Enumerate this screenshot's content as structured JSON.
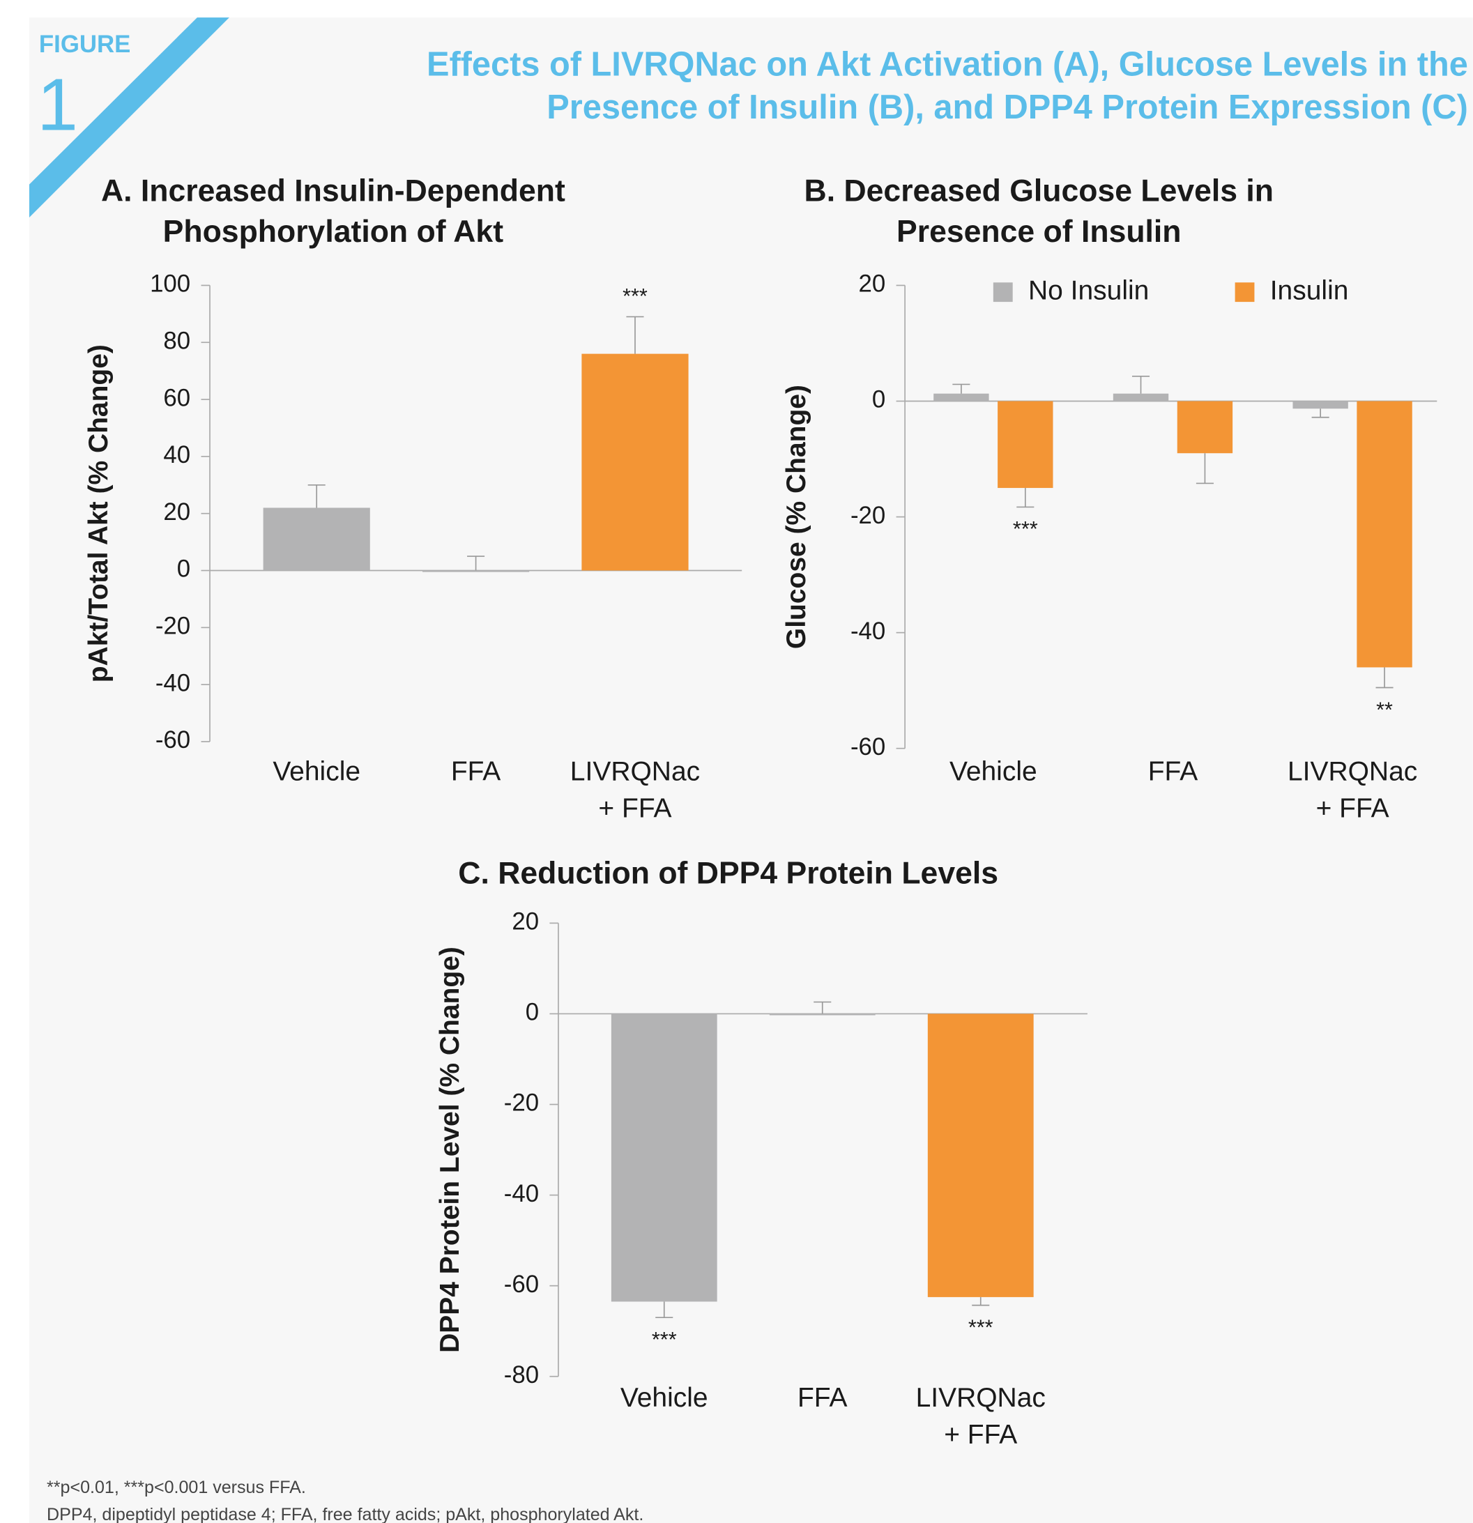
{
  "figure_label": "FIGURE",
  "figure_number": "1",
  "title": "Effects of LIVRQNac on Akt Activation (A), Glucose Levels in the\nPresence of Insulin (B), and DPP4 Protein Expression (C)",
  "footnotes": [
    "**p<0.01, ***p<0.001 versus FFA.",
    "DPP4, dipeptidyl peptidase 4; FFA, free fatty acids; pAkt, phosphorylated Akt."
  ],
  "chart_data": [
    {
      "type": "bar",
      "title": "A. Increased Insulin-Dependent\nPhosphorylation of Akt",
      "y_label": "pAkt/Total Akt (% Change)",
      "categories": [
        "Vehicle",
        "FFA",
        "LIVRQNac\n+ FFA"
      ],
      "values": [
        22,
        0,
        76
      ],
      "errors": [
        8,
        5,
        13
      ],
      "colors": [
        "#b3b3b4",
        "#b3b3b4",
        "#f39535"
      ],
      "annotations": [
        null,
        null,
        "***"
      ],
      "ylim": [
        -60,
        100
      ],
      "yticks": [
        -60,
        -40,
        -20,
        0,
        20,
        40,
        60,
        80,
        100
      ]
    },
    {
      "type": "bar",
      "title": "B. Decreased Glucose Levels in\nPresence of Insulin",
      "y_label": "Glucose (% Change)",
      "categories": [
        "Vehicle",
        "FFA",
        "LIVRQNac\n+ FFA"
      ],
      "series": [
        {
          "name": "No Insulin",
          "color": "#b3b3b4",
          "values": [
            1.3,
            1.3,
            -1.3
          ],
          "errors": [
            1.6,
            3,
            1.5
          ],
          "annotations": [
            null,
            null,
            null
          ]
        },
        {
          "name": "Insulin",
          "color": "#f39535",
          "values": [
            -15,
            -9,
            -46
          ],
          "errors": [
            3.3,
            5.2,
            3.5
          ],
          "annotations": [
            "***",
            null,
            "**"
          ]
        }
      ],
      "legend": "top",
      "ylim": [
        -60,
        20
      ],
      "yticks": [
        -60,
        -40,
        -20,
        0,
        20
      ]
    },
    {
      "type": "bar",
      "title": "C. Reduction of DPP4 Protein Levels",
      "y_label": "DPP4 Protein Level (% Change)",
      "categories": [
        "Vehicle",
        "FFA",
        "LIVRQNac\n+ FFA"
      ],
      "values": [
        -63.5,
        0,
        -62.5
      ],
      "errors": [
        3.5,
        2.6,
        1.8
      ],
      "colors": [
        "#b3b3b4",
        "#b3b3b4",
        "#f39535"
      ],
      "annotations": [
        "***",
        null,
        "***"
      ],
      "ylim": [
        -80,
        20
      ],
      "yticks": [
        -80,
        -60,
        -40,
        -20,
        0,
        20
      ]
    }
  ]
}
